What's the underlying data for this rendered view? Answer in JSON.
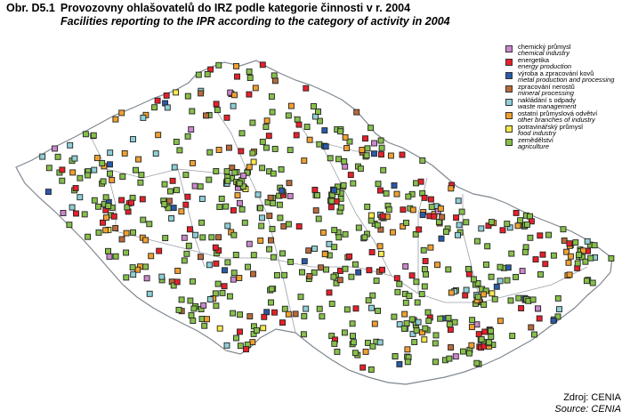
{
  "header": {
    "code": "Obr. D5.1",
    "title": "Provozovny ohlašovatelů do IRZ podle kategorie činnosti v r. 2004",
    "subtitle": "Facilities reporting to the IPR according to the category of activity in 2004"
  },
  "legend": {
    "items": [
      {
        "key": "chem",
        "cz": "chemický průmysl",
        "en": "chemical industry",
        "color": "#cc88cc"
      },
      {
        "key": "energy",
        "cz": "energetika",
        "en": "energy production",
        "color": "#e8202a"
      },
      {
        "key": "metal",
        "cz": "výroba a zpracování kovů",
        "en": "metal production and processing",
        "color": "#2a5aa8"
      },
      {
        "key": "mineral",
        "cz": "zpracování nerostů",
        "en": "mineral processing",
        "color": "#b86a3a"
      },
      {
        "key": "waste",
        "cz": "nakládání s odpady",
        "en": "waste management",
        "color": "#8fcfd6"
      },
      {
        "key": "other",
        "cz": "ostatní průmyslová odvětví",
        "en": "other branches of industry",
        "color": "#f0a030"
      },
      {
        "key": "food",
        "cz": "potravinářský průmysl",
        "en": "food industry",
        "color": "#f6e84a"
      },
      {
        "key": "agri",
        "cz": "zemědělství",
        "en": "agriculture",
        "color": "#86c04a"
      }
    ]
  },
  "source": {
    "cz": "Zdroj: CENIA",
    "en": "Source: CENIA"
  }
}
